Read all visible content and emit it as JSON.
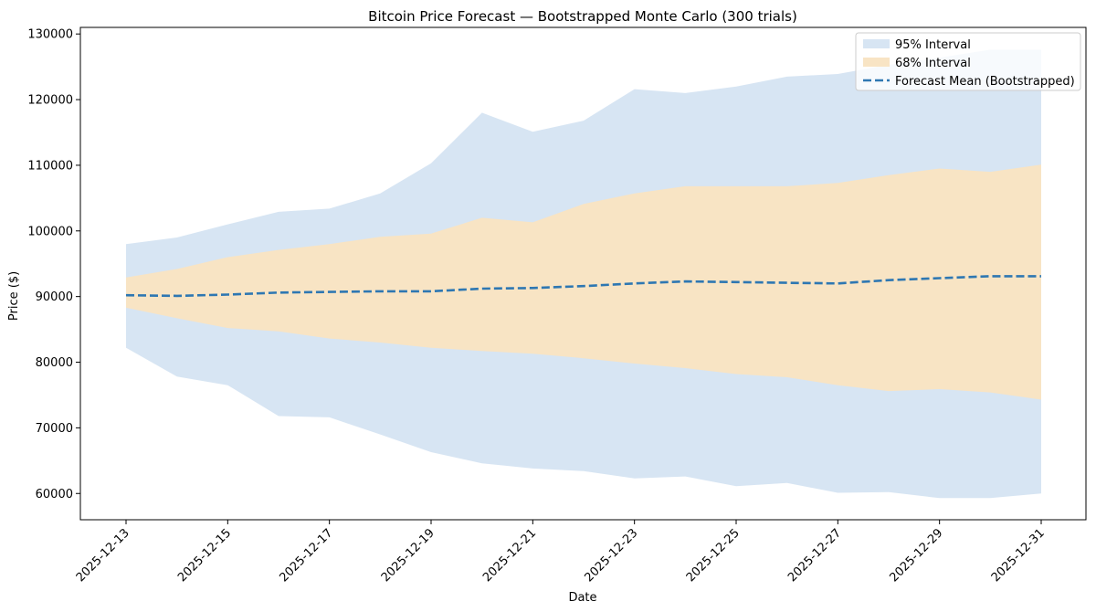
{
  "chart_data": {
    "type": "area",
    "title": "Bitcoin Price Forecast — Bootstrapped Monte Carlo (300 trials)",
    "xlabel": "Date",
    "ylabel": "Price ($)",
    "x": [
      "2025-12-13",
      "2025-12-14",
      "2025-12-15",
      "2025-12-16",
      "2025-12-17",
      "2025-12-18",
      "2025-12-19",
      "2025-12-20",
      "2025-12-21",
      "2025-12-22",
      "2025-12-23",
      "2025-12-24",
      "2025-12-25",
      "2025-12-26",
      "2025-12-27",
      "2025-12-28",
      "2025-12-29",
      "2025-12-30",
      "2025-12-31"
    ],
    "x_ticks": [
      "2025-12-13",
      "2025-12-15",
      "2025-12-17",
      "2025-12-19",
      "2025-12-21",
      "2025-12-23",
      "2025-12-25",
      "2025-12-27",
      "2025-12-29",
      "2025-12-31"
    ],
    "ylim": [
      56000,
      131000
    ],
    "y_ticks": [
      60000,
      70000,
      80000,
      90000,
      100000,
      110000,
      120000,
      130000
    ],
    "grid": false,
    "legend_position": "top-right",
    "series": [
      {
        "name": "95% Interval",
        "kind": "band",
        "color": "#d7e5f3",
        "lower": [
          82200,
          77800,
          76500,
          71800,
          71600,
          69000,
          66300,
          64600,
          63800,
          63400,
          62300,
          62600,
          61100,
          61600,
          60100,
          60200,
          59300,
          59300,
          60000
        ],
        "upper": [
          98000,
          99000,
          101000,
          102900,
          103400,
          105700,
          110300,
          118000,
          115100,
          116800,
          121600,
          121000,
          122000,
          123500,
          123900,
          125300,
          126400,
          127600,
          127600
        ]
      },
      {
        "name": "68% Interval",
        "kind": "band",
        "color": "#f8e4c4",
        "lower": [
          88300,
          86700,
          85200,
          84700,
          83600,
          83000,
          82200,
          81700,
          81300,
          80600,
          79800,
          79100,
          78200,
          77700,
          76500,
          75600,
          75900,
          75400,
          74300
        ],
        "upper": [
          92900,
          94200,
          96000,
          97100,
          98000,
          99100,
          99600,
          102000,
          101300,
          104100,
          105700,
          106800,
          106800,
          106800,
          107300,
          108500,
          109500,
          109000,
          110100
        ]
      },
      {
        "name": "Forecast Mean (Bootstrapped)",
        "kind": "line",
        "color": "#2e77b2",
        "values": [
          90200,
          90100,
          90300,
          90600,
          90700,
          90800,
          90800,
          91200,
          91300,
          91600,
          92000,
          92300,
          92200,
          92100,
          92000,
          92500,
          92800,
          93100,
          93100
        ]
      }
    ]
  }
}
